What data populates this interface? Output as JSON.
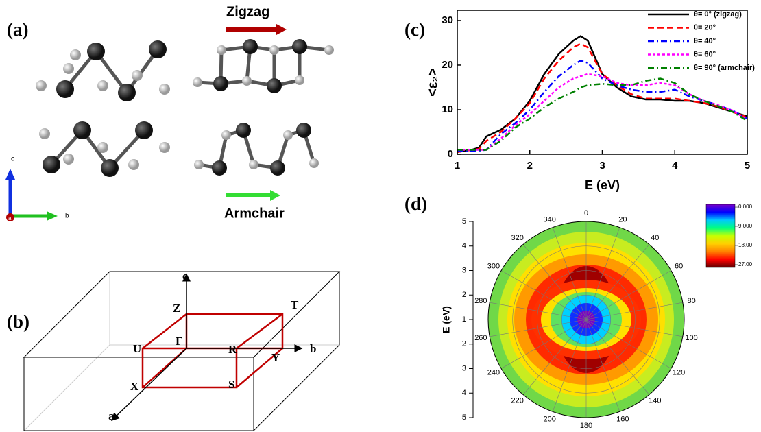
{
  "panel_a": {
    "label": "(a)",
    "zigzag": "Zigzag",
    "armchair": "Armchair",
    "axis_c": "c",
    "axis_b": "b",
    "axis_a": "a"
  },
  "panel_b": {
    "label": "(b)",
    "c": "c",
    "Z": "Z",
    "T": "T",
    "U": "U",
    "Gamma": "Γ",
    "R": "R",
    "Y": "Y",
    "b": "b",
    "X": "X",
    "S": "S",
    "a": "a"
  },
  "chart_data": [
    {
      "type": "line",
      "panel_label": "(c)",
      "xlabel": "E (eV)",
      "ylabel": "<ε₂>",
      "x": [
        1,
        1.2,
        1.3,
        1.4,
        1.6,
        1.8,
        2,
        2.2,
        2.4,
        2.6,
        2.7,
        2.8,
        3,
        3.2,
        3.4,
        3.6,
        3.8,
        4,
        4.2,
        4.4,
        4.6,
        4.8,
        5
      ],
      "xlim": [
        1,
        5
      ],
      "xticks": [
        1,
        2,
        3,
        4,
        5
      ],
      "ylim": [
        0,
        32.3
      ],
      "yticks": [
        0,
        10,
        20,
        30
      ],
      "series": [
        {
          "name": "θ= 0° (zigzag)",
          "color": "#000000",
          "style": "solid",
          "values": [
            0.5,
            1,
            1.5,
            4,
            5.5,
            8,
            12,
            18,
            22.5,
            25.5,
            26.5,
            25.5,
            18,
            15,
            13,
            12.3,
            12.3,
            12,
            12,
            11.5,
            10.5,
            9.5,
            8.5
          ]
        },
        {
          "name": "θ= 20°",
          "color": "#ff0000",
          "style": "dash",
          "values": [
            0.5,
            1,
            1.2,
            3,
            5,
            8,
            11.5,
            17,
            21,
            24,
            24.8,
            24,
            18,
            15.5,
            13.5,
            12.5,
            12.5,
            12.5,
            12,
            11.5,
            10.7,
            9.5,
            8.3
          ]
        },
        {
          "name": "θ= 40°",
          "color": "#0000ff",
          "style": "dashdot",
          "values": [
            0.8,
            0.8,
            0.8,
            1,
            4.5,
            7,
            10,
            14,
            17.5,
            20,
            21,
            20.5,
            17,
            15.5,
            14.5,
            14,
            14,
            14.5,
            13,
            12,
            11,
            9.8,
            8
          ]
        },
        {
          "name": "θ= 60°",
          "color": "#ff00ff",
          "style": "dot",
          "values": [
            1,
            1,
            1,
            1,
            3.5,
            6.5,
            9,
            12,
            15,
            17,
            17.5,
            18,
            17.5,
            16,
            15.5,
            15.5,
            16,
            15.5,
            13.5,
            12,
            11,
            9.8,
            7.8
          ]
        },
        {
          "name": "θ= 90° (armchair)",
          "color": "#008000",
          "style": "dashdot",
          "values": [
            1,
            1,
            1,
            1,
            3,
            6,
            8,
            10.5,
            12.5,
            14,
            15,
            15.5,
            15.8,
            15.5,
            15.5,
            16.5,
            17,
            16,
            13.5,
            12,
            10.8,
            9.5,
            7.5
          ]
        }
      ]
    },
    {
      "type": "polar",
      "panel_label": "(d)",
      "ylabel": "E (eV)",
      "rlim": [
        1,
        5
      ],
      "rticks": [
        1,
        2,
        3,
        4,
        5
      ],
      "angle_ticks": [
        0,
        20,
        40,
        60,
        80,
        100,
        120,
        140,
        160,
        180,
        200,
        220,
        240,
        260,
        280,
        300,
        320,
        340
      ],
      "clim": [
        -1.3,
        28.3
      ],
      "cticks": [
        {
          "value": 0,
          "label": "0.000"
        },
        {
          "value": 9,
          "label": "9.000"
        },
        {
          "value": 18,
          "label": "18.00"
        },
        {
          "value": 27,
          "label": "27.00"
        }
      ],
      "colors": [
        "#7a00c8",
        "#0000ff",
        "#00c8ff",
        "#00ff80",
        "#c8ff00",
        "#ffd000",
        "#ff8000",
        "#ff0000",
        "#600000"
      ]
    }
  ]
}
